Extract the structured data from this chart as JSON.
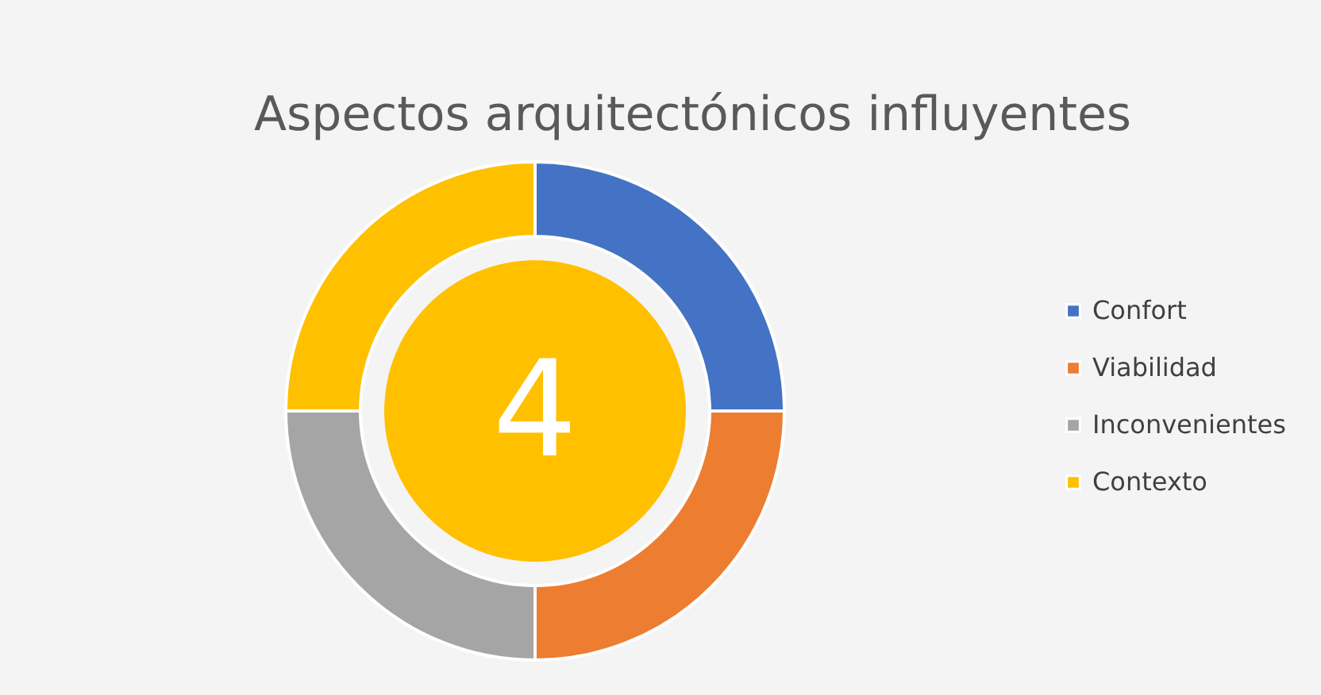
{
  "chart_data": {
    "type": "donut",
    "title": "Aspectos arquitectónicos influyentes",
    "categories": [
      "Confort",
      "Viabilidad",
      "Inconvenientes",
      "Contexto"
    ],
    "values": [
      25,
      25,
      25,
      25
    ],
    "colors": [
      "#4472c4",
      "#ed7d31",
      "#a5a5a5",
      "#ffc000"
    ],
    "annotations": [
      "4"
    ],
    "legend": "right"
  }
}
